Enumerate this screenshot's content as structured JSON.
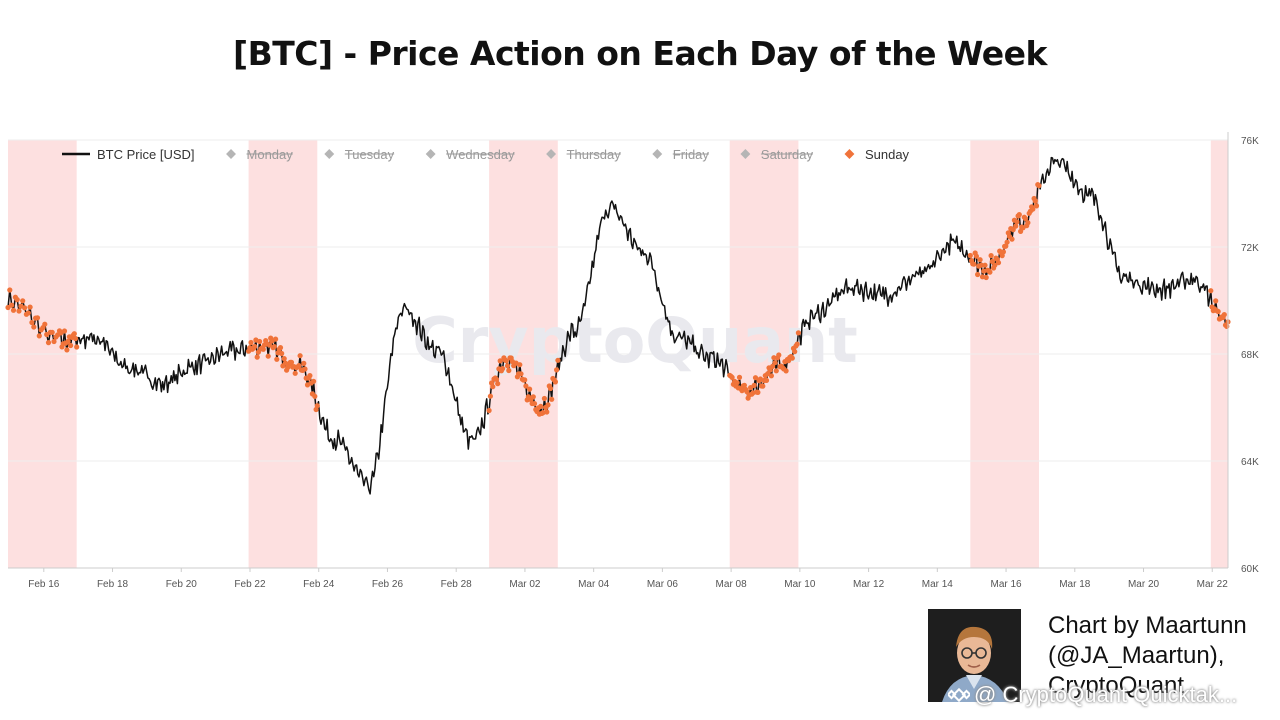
{
  "title": "[BTC] - Price Action on Each Day of the Week",
  "watermark": "CryptoQuant",
  "credit": {
    "line1": "Chart by Maartunn",
    "line2": "(@JA_Maartun),",
    "line3": "CryptoQuant",
    "overlay": "@ CryptoQuant Quicktak..."
  },
  "colors": {
    "price_line": "#111111",
    "sunday": "#f0733a",
    "sunday_band": "#fde0e0",
    "legend_inactive": "#b5b5b5",
    "grid": "#eeeeee"
  },
  "chart_data": {
    "type": "line",
    "title": "[BTC] - Price Action on Each Day of the Week",
    "xlabel": "",
    "ylabel": "",
    "x_ticks": [
      "Feb 16",
      "Feb 18",
      "Feb 20",
      "Feb 22",
      "Feb 24",
      "Feb 26",
      "Feb 28",
      "Mar 02",
      "Mar 04",
      "Mar 06",
      "Mar 08",
      "Mar 10",
      "Mar 12",
      "Mar 14",
      "Mar 16",
      "Mar 18",
      "Mar 20",
      "Mar 22"
    ],
    "y_ticks": [
      "60K",
      "64K",
      "68K",
      "72K",
      "76K"
    ],
    "x_range": [
      "2025-02-15",
      "2025-03-22"
    ],
    "ylim": [
      60000,
      76000
    ],
    "y_axis_side": "right",
    "legend_position": "top",
    "legend": [
      {
        "label": "BTC Price [USD]",
        "marker": "line",
        "active": true
      },
      {
        "label": "Monday",
        "marker": "diamond",
        "active": false
      },
      {
        "label": "Tuesday",
        "marker": "diamond",
        "active": false
      },
      {
        "label": "Wednesday",
        "marker": "diamond",
        "active": false
      },
      {
        "label": "Thursday",
        "marker": "diamond",
        "active": false
      },
      {
        "label": "Friday",
        "marker": "diamond",
        "active": false
      },
      {
        "label": "Saturday",
        "marker": "diamond",
        "active": false
      },
      {
        "label": "Sunday",
        "marker": "diamond",
        "active": true
      }
    ],
    "sunday_bands": [
      [
        "2025-02-15",
        "2025-02-16"
      ],
      [
        "2025-02-22",
        "2025-02-23"
      ],
      [
        "2025-03-01",
        "2025-03-02"
      ],
      [
        "2025-03-08",
        "2025-03-09"
      ],
      [
        "2025-03-15",
        "2025-03-16"
      ],
      [
        "2025-03-22",
        "2025-03-22"
      ]
    ],
    "series": [
      {
        "name": "BTC Price [USD]",
        "x": [
          "2025-02-15",
          "2025-02-16",
          "2025-02-17",
          "2025-02-18",
          "2025-02-19",
          "2025-02-20",
          "2025-02-21",
          "2025-02-22",
          "2025-02-23",
          "2025-02-24",
          "2025-02-25",
          "2025-02-26",
          "2025-02-27",
          "2025-02-28",
          "2025-03-01",
          "2025-03-02",
          "2025-03-03",
          "2025-03-04",
          "2025-03-05",
          "2025-03-06",
          "2025-03-07",
          "2025-03-08",
          "2025-03-09",
          "2025-03-10",
          "2025-03-11",
          "2025-03-12",
          "2025-03-13",
          "2025-03-14",
          "2025-03-15",
          "2025-03-16",
          "2025-03-17",
          "2025-03-18",
          "2025-03-19",
          "2025-03-20",
          "2025-03-21",
          "2025-03-22"
        ],
        "y": [
          70000,
          68500,
          68600,
          67500,
          66900,
          67600,
          68100,
          68300,
          67500,
          64800,
          63100,
          69700,
          68100,
          64700,
          67800,
          66000,
          68900,
          73500,
          71800,
          68600,
          67800,
          66600,
          67600,
          69500,
          70500,
          70200,
          70900,
          72100,
          71200,
          73000,
          75200,
          73900,
          70800,
          70400,
          70800,
          69200
        ]
      }
    ]
  }
}
